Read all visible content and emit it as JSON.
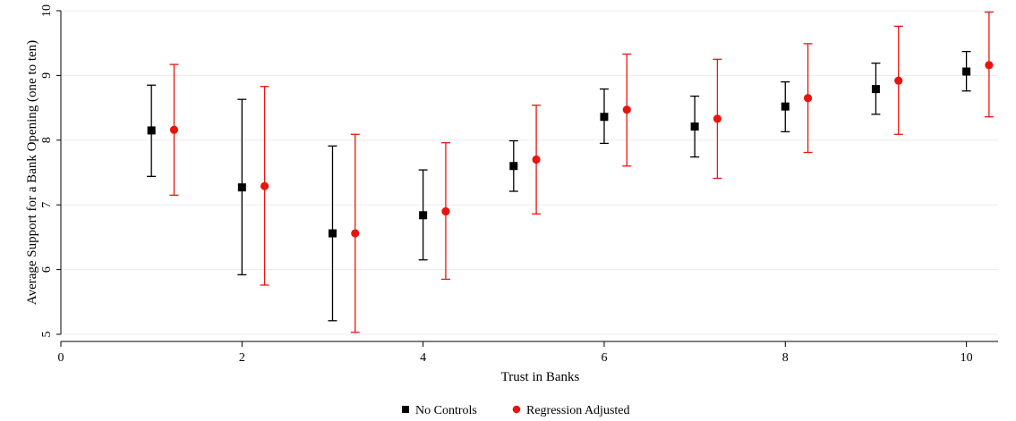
{
  "chart_data": {
    "type": "scatter",
    "xlabel": "Trust in Banks",
    "ylabel": "Average Support for a Bank Opening (one to ten)",
    "xlim": [
      0,
      10.35
    ],
    "ylim": [
      5,
      10
    ],
    "x_ticks": [
      0,
      2,
      4,
      6,
      8,
      10
    ],
    "y_ticks": [
      5,
      6,
      7,
      8,
      9,
      10
    ],
    "grid": "horizontal",
    "legend_position": "bottom-center",
    "series": [
      {
        "name": "No Controls",
        "color": "#000000",
        "marker": "square",
        "points": [
          {
            "x": 1,
            "y": 8.15,
            "lo": 7.44,
            "hi": 8.85
          },
          {
            "x": 2,
            "y": 7.27,
            "lo": 5.92,
            "hi": 8.63
          },
          {
            "x": 3,
            "y": 6.56,
            "lo": 5.21,
            "hi": 7.91
          },
          {
            "x": 4,
            "y": 6.84,
            "lo": 6.15,
            "hi": 7.54
          },
          {
            "x": 5,
            "y": 7.6,
            "lo": 7.21,
            "hi": 7.99
          },
          {
            "x": 6,
            "y": 8.36,
            "lo": 7.95,
            "hi": 8.79
          },
          {
            "x": 7,
            "y": 8.21,
            "lo": 7.74,
            "hi": 8.68
          },
          {
            "x": 8,
            "y": 8.52,
            "lo": 8.13,
            "hi": 8.9
          },
          {
            "x": 9,
            "y": 8.79,
            "lo": 8.4,
            "hi": 9.19
          },
          {
            "x": 10,
            "y": 9.06,
            "lo": 8.76,
            "hi": 9.37
          }
        ]
      },
      {
        "name": "Regression Adjusted",
        "color": "#e8150f",
        "marker": "circle",
        "points": [
          {
            "x": 1.25,
            "y": 8.16,
            "lo": 7.15,
            "hi": 9.17
          },
          {
            "x": 2.25,
            "y": 7.29,
            "lo": 5.76,
            "hi": 8.83
          },
          {
            "x": 3.25,
            "y": 6.56,
            "lo": 5.03,
            "hi": 8.09
          },
          {
            "x": 4.25,
            "y": 6.9,
            "lo": 5.85,
            "hi": 7.96
          },
          {
            "x": 5.25,
            "y": 7.7,
            "lo": 6.86,
            "hi": 8.54
          },
          {
            "x": 6.25,
            "y": 8.47,
            "lo": 7.6,
            "hi": 9.33
          },
          {
            "x": 7.25,
            "y": 8.33,
            "lo": 7.41,
            "hi": 9.25
          },
          {
            "x": 8.25,
            "y": 8.65,
            "lo": 7.81,
            "hi": 9.49
          },
          {
            "x": 9.25,
            "y": 8.92,
            "lo": 8.09,
            "hi": 9.76
          },
          {
            "x": 10.25,
            "y": 9.16,
            "lo": 8.36,
            "hi": 9.98
          }
        ]
      }
    ]
  }
}
